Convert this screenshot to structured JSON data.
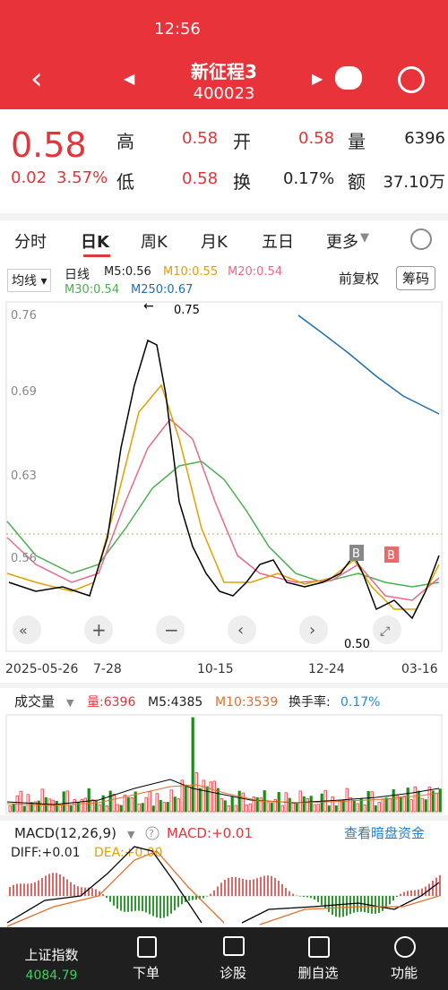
{
  "status_bar": {
    "time": "12:56"
  },
  "header": {
    "title": "新征程3",
    "code": "400023"
  },
  "quote": {
    "price": "0.58",
    "change": "0.02",
    "change_pct": "3.57%",
    "fields": [
      {
        "label": "高",
        "value": "0.58"
      },
      {
        "label": "开",
        "value": "0.58"
      },
      {
        "label": "量",
        "value": "6396"
      },
      {
        "label": "低",
        "value": "0.58"
      },
      {
        "label": "换",
        "value": "0.17%"
      },
      {
        "label": "额",
        "value": "37.10万"
      }
    ]
  },
  "tabs": [
    "分时",
    "日K",
    "周K",
    "月K",
    "五日",
    "更多"
  ],
  "indicator": {
    "selector": "均线",
    "period": "日线",
    "items": [
      "M5:0.56",
      "M10:0.55",
      "M20:0.54",
      "M30:0.54",
      "M250:0.67"
    ]
  },
  "buttons": [
    "前复权",
    "筹码"
  ],
  "price_axis": [
    "0.76",
    "0.69",
    "0.63",
    "0.56"
  ],
  "annotations": [
    "0.75",
    "0.50"
  ],
  "markers": [
    "B",
    "B"
  ],
  "dates": [
    "2025-05-26",
    "7-28",
    "10-15",
    "12-24",
    "03-16"
  ],
  "volume": {
    "title": "成交量",
    "items": [
      "量:6396",
      "M5:4385",
      "M10:3539",
      "换手率:"
    ],
    "turnover": "0.17%"
  },
  "macd": {
    "title": "MACD(12,26,9)",
    "help": "?",
    "macd": "MACD:+0.01",
    "link": "查看暗盘资金",
    "diff": "DIFF:+0.01",
    "dea": "DEA:+0.00"
  },
  "bottom_nav": [
    {
      "label": "上证指数",
      "value": "4084.79"
    },
    {
      "label": "下单"
    },
    {
      "label": "诊股"
    },
    {
      "label": "删自选"
    },
    {
      "label": "功能"
    }
  ]
}
